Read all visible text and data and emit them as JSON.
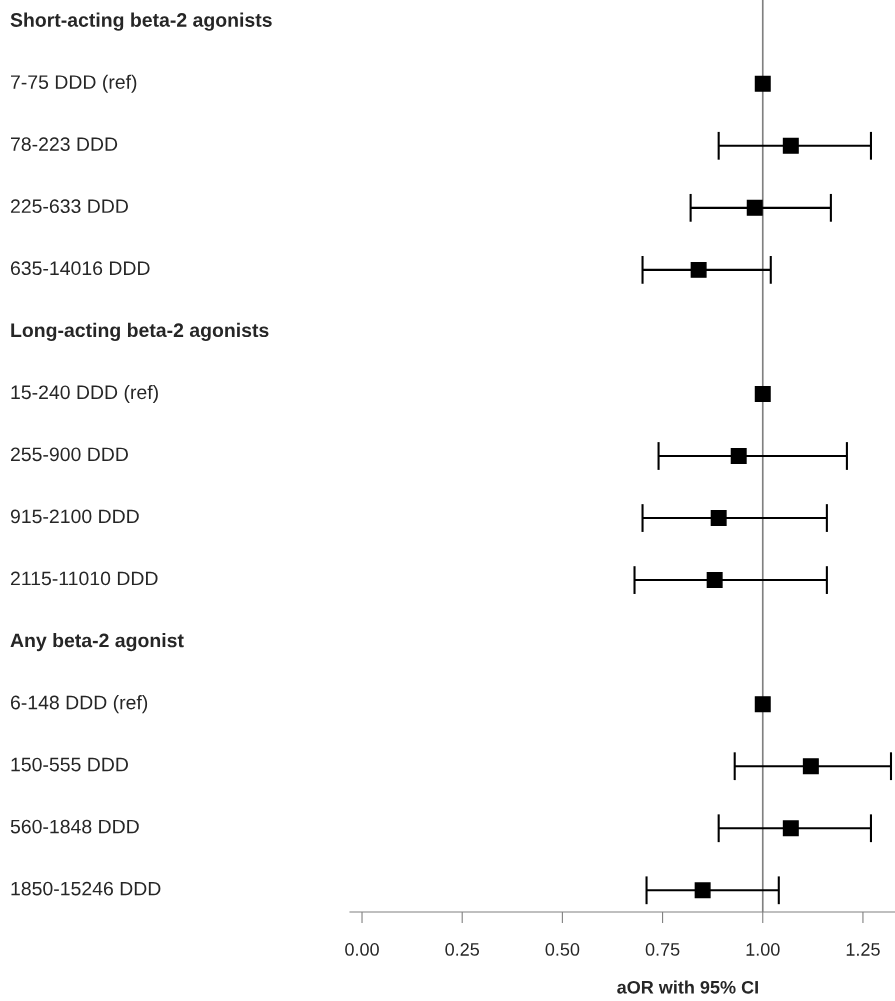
{
  "chart_data": {
    "type": "scatter",
    "orientation": "horizontal",
    "marker": "square",
    "xlabel": "aOR with 95% CI",
    "categories": [
      "Short-acting beta-2 agonists",
      "7-75 DDD (ref)",
      "78-223 DDD",
      "225-633 DDD",
      "635-14016 DDD",
      "Long-acting beta-2 agonists",
      "15-240 DDD (ref)",
      "255-900 DDD",
      "915-2100 DDD",
      "2115-11010 DDD",
      "Any beta-2 agonist",
      "6-148 DDD (ref)",
      "150-555 DDD",
      "560-1848 DDD",
      "1850-15246 DDD"
    ],
    "values": [
      null,
      1.0,
      1.07,
      0.98,
      0.84,
      null,
      1.0,
      0.94,
      0.89,
      0.88,
      null,
      1.0,
      1.12,
      1.07,
      0.85
    ],
    "errors": [
      null,
      null,
      [
        0.89,
        1.27
      ],
      [
        0.82,
        1.17
      ],
      [
        0.7,
        1.02
      ],
      null,
      null,
      [
        0.74,
        1.21
      ],
      [
        0.7,
        1.16
      ],
      [
        0.68,
        1.16
      ],
      null,
      null,
      [
        0.93,
        1.32
      ],
      [
        0.89,
        1.27
      ],
      [
        0.71,
        1.04
      ]
    ],
    "color": "#000000",
    "xlim": [
      -0.03,
      1.33
    ],
    "xticks": [
      {
        "value": 0,
        "label": "0.00"
      },
      {
        "value": 0.25,
        "label": "0.25"
      },
      {
        "value": 0.5,
        "label": "0.50"
      },
      {
        "value": 0.75,
        "label": "0.75"
      },
      {
        "value": 1,
        "label": "1.00"
      },
      {
        "value": 1.25,
        "label": "1.25"
      }
    ],
    "ref_lines": [
      {
        "axis": "x",
        "value": 1,
        "color": "#808080"
      }
    ],
    "grid": false,
    "legend": false
  }
}
